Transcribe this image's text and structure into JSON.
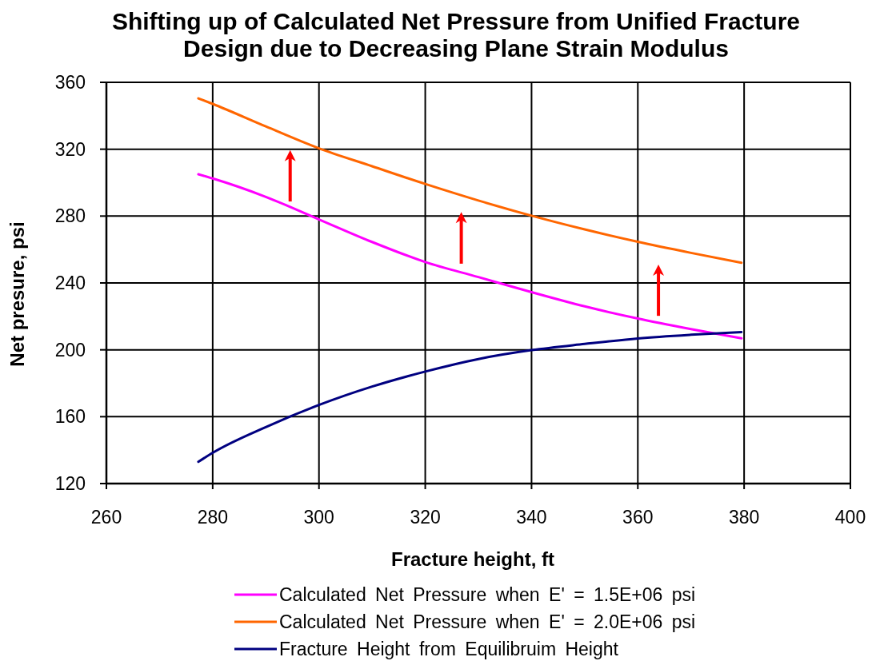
{
  "chart_data": {
    "type": "line",
    "title": "Shifting up of Calculated Net Pressure from Unified Fracture Design due to Decreasing Plane Strain Modulus",
    "xlabel": "Fracture height, ft",
    "ylabel": "Net presure, psi",
    "xlim": [
      260,
      400
    ],
    "ylim": [
      120,
      360
    ],
    "xticks": [
      260,
      280,
      300,
      320,
      340,
      360,
      380,
      400
    ],
    "yticks": [
      120,
      160,
      200,
      240,
      280,
      320,
      360
    ],
    "grid": true,
    "legend": "bottom",
    "marker": "none",
    "line_style": "solid",
    "series": [
      {
        "name": "Calculated Net Pressure when E' = 1.5E+06 psi",
        "color": "#ff00ff",
        "x": [
          277.3,
          280,
          290,
          300,
          310,
          320,
          330,
          340,
          350,
          360,
          370,
          379.5
        ],
        "values": [
          305,
          302.5,
          291.5,
          278,
          264.5,
          252.5,
          243.5,
          234.5,
          226,
          218.7,
          212.4,
          206.9
        ]
      },
      {
        "name": "Calculated Net Pressure when E' = 2.0E+06 psi",
        "color": "#ff6600",
        "x": [
          277.3,
          280,
          290,
          300,
          310,
          320,
          330,
          340,
          350,
          360,
          370,
          379.5
        ],
        "values": [
          350.4,
          347.1,
          333.6,
          320.5,
          309.8,
          299.2,
          289.3,
          280.2,
          272,
          264.6,
          258,
          252.1
        ]
      },
      {
        "name": "Fracture Height from Equilibruim Height",
        "color": "#000080",
        "x": [
          277.3,
          280,
          290,
          300,
          310,
          320,
          330,
          340,
          350,
          360,
          370,
          379.5
        ],
        "values": [
          133,
          138.4,
          153.8,
          167,
          178,
          187,
          194.5,
          199.8,
          203.5,
          206.8,
          209,
          210.6
        ]
      }
    ]
  }
}
